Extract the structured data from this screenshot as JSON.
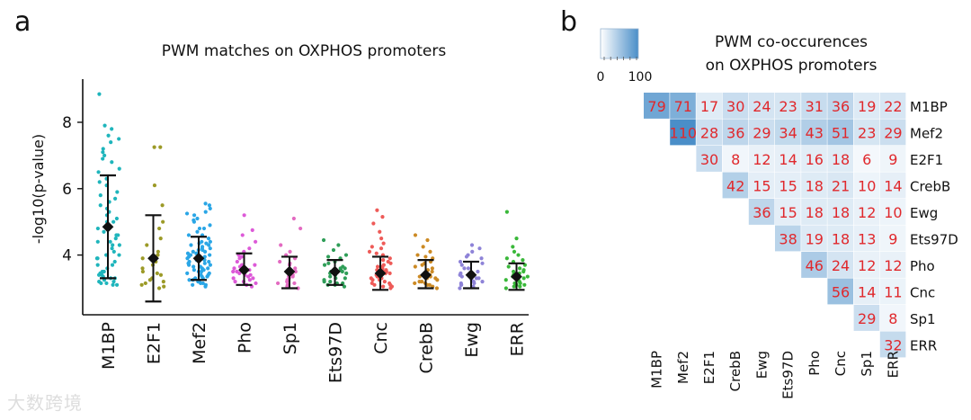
{
  "watermark": "大数跨境",
  "chart_data": [
    {
      "panel_label": "a",
      "type": "scatter",
      "title": "PWM matches on OXPHOS promoters",
      "ylabel": "-log10(p-value)",
      "xlabel": "",
      "ylim": [
        2.2,
        9.3
      ],
      "yticks": [
        4,
        6,
        8
      ],
      "categories": [
        "M1BP",
        "E2F1",
        "Mef2",
        "Pho",
        "Sp1",
        "Ets97D",
        "Cnc",
        "CrebB",
        "Ewg",
        "ERR"
      ],
      "colors": [
        "#1fb5bc",
        "#9c9a27",
        "#2aa6e6",
        "#dd5ad8",
        "#e36bc1",
        "#2f9e58",
        "#ee5b58",
        "#cc8a24",
        "#8e83d8",
        "#3ab83a"
      ],
      "series": [
        {
          "name": "M1BP",
          "mean": 4.85,
          "sd_low": 3.3,
          "sd_high": 6.4,
          "points": [
            3.1,
            3.15,
            3.2,
            3.25,
            3.3,
            3.35,
            3.4,
            3.45,
            3.5,
            3.6,
            3.7,
            3.8,
            3.9,
            4.0,
            4.1,
            4.2,
            4.3,
            4.4,
            4.5,
            4.6,
            4.7,
            4.8,
            4.9,
            5.0,
            5.1,
            5.2,
            5.3,
            5.5,
            5.7,
            5.9,
            6.1,
            6.3,
            6.5,
            6.8,
            7.0,
            7.2,
            7.4,
            7.6,
            7.8,
            7.9,
            8.85,
            3.1,
            3.2,
            3.3,
            3.5,
            3.7,
            4.0,
            4.3,
            4.6,
            5.0,
            5.4,
            5.8,
            6.2,
            6.6,
            7.1,
            7.5,
            3.15,
            3.4,
            3.9,
            4.4,
            5.6,
            6.9
          ]
        },
        {
          "name": "E2F1",
          "mean": 3.9,
          "sd_low": 2.6,
          "sd_high": 5.2,
          "points": [
            3.0,
            3.1,
            3.15,
            3.2,
            3.3,
            3.4,
            3.5,
            3.6,
            3.8,
            3.9,
            4.1,
            4.3,
            4.5,
            4.8,
            5.0,
            5.5,
            6.1,
            7.25,
            7.25,
            3.05,
            3.25,
            3.45,
            3.7,
            4.0
          ]
        },
        {
          "name": "Mef2",
          "mean": 3.9,
          "sd_low": 3.25,
          "sd_high": 4.55,
          "points": [
            3.05,
            3.1,
            3.15,
            3.2,
            3.25,
            3.3,
            3.35,
            3.4,
            3.45,
            3.5,
            3.55,
            3.6,
            3.65,
            3.7,
            3.75,
            3.8,
            3.85,
            3.9,
            3.95,
            4.0,
            4.05,
            4.1,
            4.15,
            4.2,
            4.25,
            4.3,
            4.35,
            4.4,
            4.5,
            4.6,
            4.7,
            4.8,
            4.9,
            5.0,
            5.1,
            5.2,
            5.3,
            5.4,
            5.5,
            5.55,
            3.1,
            3.2,
            3.3,
            3.4,
            3.5,
            3.6,
            3.7,
            3.8,
            3.9,
            4.0,
            4.1,
            4.2,
            4.3,
            4.4,
            4.6,
            4.8,
            3.15,
            3.35,
            3.55,
            3.75,
            3.95,
            4.15,
            4.35,
            5.05,
            5.25,
            3.25,
            3.45,
            3.65,
            3.85,
            4.05
          ]
        },
        {
          "name": "Pho",
          "mean": 3.55,
          "sd_low": 3.1,
          "sd_high": 4.05,
          "points": [
            3.05,
            3.1,
            3.15,
            3.2,
            3.25,
            3.3,
            3.35,
            3.4,
            3.45,
            3.5,
            3.55,
            3.6,
            3.65,
            3.7,
            3.8,
            3.9,
            4.0,
            4.1,
            4.2,
            4.4,
            4.6,
            4.75,
            5.2,
            3.1,
            3.3,
            3.5,
            3.7,
            3.95,
            3.2,
            3.4
          ]
        },
        {
          "name": "Sp1",
          "mean": 3.5,
          "sd_low": 3.0,
          "sd_high": 3.95,
          "points": [
            3.0,
            3.05,
            3.1,
            3.15,
            3.2,
            3.25,
            3.3,
            3.35,
            3.4,
            3.5,
            3.6,
            3.7,
            3.8,
            3.9,
            4.0,
            4.1,
            4.3,
            4.8,
            5.1,
            3.15,
            3.35,
            3.55,
            3.75
          ]
        },
        {
          "name": "Ets97D",
          "mean": 3.5,
          "sd_low": 3.1,
          "sd_high": 3.85,
          "points": [
            3.05,
            3.1,
            3.15,
            3.2,
            3.25,
            3.3,
            3.35,
            3.4,
            3.45,
            3.5,
            3.55,
            3.6,
            3.65,
            3.7,
            3.8,
            3.9,
            4.0,
            4.15,
            4.3,
            4.45,
            3.1,
            3.2,
            3.3,
            3.4,
            3.5,
            3.6,
            3.75,
            3.95,
            3.15,
            3.45
          ]
        },
        {
          "name": "Cnc",
          "mean": 3.45,
          "sd_low": 2.95,
          "sd_high": 3.95,
          "points": [
            3.0,
            3.05,
            3.1,
            3.15,
            3.2,
            3.25,
            3.3,
            3.35,
            3.4,
            3.45,
            3.5,
            3.55,
            3.6,
            3.65,
            3.7,
            3.75,
            3.8,
            3.9,
            4.0,
            4.1,
            4.2,
            4.35,
            4.5,
            4.7,
            4.95,
            5.15,
            5.35,
            3.05,
            3.15,
            3.25,
            3.35,
            3.45,
            3.55,
            3.65,
            3.85,
            4.05,
            4.25,
            3.1,
            3.3,
            3.5
          ]
        },
        {
          "name": "CrebB",
          "mean": 3.4,
          "sd_low": 3.0,
          "sd_high": 3.85,
          "points": [
            3.0,
            3.05,
            3.1,
            3.15,
            3.2,
            3.25,
            3.3,
            3.35,
            3.4,
            3.45,
            3.5,
            3.6,
            3.7,
            3.8,
            3.9,
            4.0,
            4.1,
            4.25,
            4.45,
            4.6,
            3.1,
            3.2,
            3.3,
            3.4,
            3.55,
            3.75,
            3.95,
            3.15,
            3.35,
            3.65
          ]
        },
        {
          "name": "Ewg",
          "mean": 3.4,
          "sd_low": 3.0,
          "sd_high": 3.8,
          "points": [
            3.0,
            3.05,
            3.1,
            3.15,
            3.2,
            3.25,
            3.3,
            3.35,
            3.4,
            3.45,
            3.5,
            3.6,
            3.7,
            3.8,
            3.9,
            4.0,
            4.1,
            4.2,
            4.3,
            3.1,
            3.2,
            3.3,
            3.45,
            3.6,
            3.75,
            3.95,
            3.15,
            3.35
          ]
        },
        {
          "name": "ERR",
          "mean": 3.35,
          "sd_low": 2.95,
          "sd_high": 3.75,
          "points": [
            3.0,
            3.05,
            3.1,
            3.15,
            3.2,
            3.25,
            3.3,
            3.35,
            3.4,
            3.45,
            3.5,
            3.6,
            3.7,
            3.8,
            3.9,
            4.0,
            4.1,
            4.25,
            4.5,
            5.3,
            3.05,
            3.15,
            3.25,
            3.35,
            3.5,
            3.65,
            3.85,
            3.1,
            3.3,
            3.55
          ]
        }
      ]
    },
    {
      "panel_label": "b",
      "type": "heatmap",
      "title_line1": "PWM co-occurences",
      "title_line2": "on OXPHOS promoters",
      "colorbar": {
        "min": 0,
        "max": 100,
        "min_label": "0",
        "max_label": "100",
        "color_low": "#ffffff",
        "color_high": "#4a8ec8"
      },
      "labels": [
        "M1BP",
        "Mef2",
        "E2F1",
        "CrebB",
        "Ewg",
        "Ets97D",
        "Pho",
        "Cnc",
        "Sp1",
        "ERR"
      ],
      "matrix": [
        [
          79,
          71,
          17,
          30,
          24,
          23,
          31,
          36,
          19,
          22
        ],
        [
          null,
          110,
          28,
          36,
          29,
          34,
          43,
          51,
          23,
          29
        ],
        [
          null,
          null,
          30,
          8,
          12,
          14,
          16,
          18,
          6,
          9
        ],
        [
          null,
          null,
          null,
          42,
          15,
          15,
          18,
          21,
          10,
          14
        ],
        [
          null,
          null,
          null,
          null,
          36,
          15,
          18,
          18,
          12,
          10
        ],
        [
          null,
          null,
          null,
          null,
          null,
          38,
          19,
          18,
          13,
          9
        ],
        [
          null,
          null,
          null,
          null,
          null,
          null,
          46,
          24,
          12,
          12
        ],
        [
          null,
          null,
          null,
          null,
          null,
          null,
          null,
          56,
          14,
          11
        ],
        [
          null,
          null,
          null,
          null,
          null,
          null,
          null,
          null,
          29,
          8
        ],
        [
          null,
          null,
          null,
          null,
          null,
          null,
          null,
          null,
          null,
          32
        ]
      ],
      "value_text_color": "#e0282c"
    }
  ]
}
